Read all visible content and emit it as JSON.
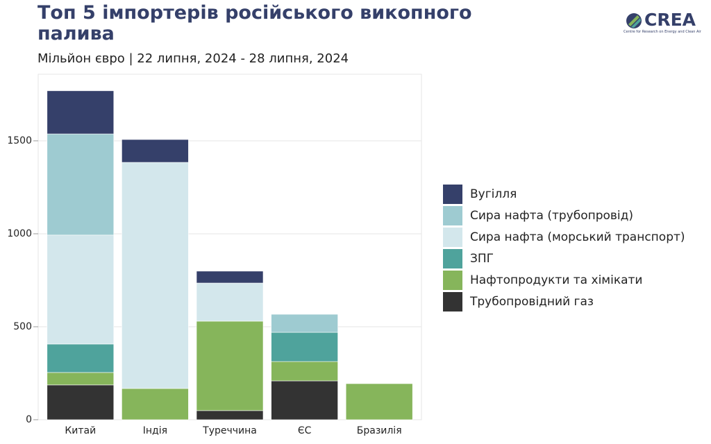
{
  "chart_data": {
    "type": "stacked_bar",
    "title": "Топ 5 імпортерів російського викопного палива",
    "subtitle": "Мільйон євро | 22 липня, 2024 - 28 липня, 2024",
    "logo": {
      "name": "CREA",
      "subtitle": "Centre for Research on Energy and Clean Air"
    },
    "categories": [
      "Китай",
      "Індія",
      "Туреччина",
      "ЄС",
      "Бразилія"
    ],
    "series": [
      {
        "name": "Трубопровідний газ",
        "color": "#333333",
        "values": [
          187,
          0,
          49,
          209,
          0
        ]
      },
      {
        "name": "Нафтопродукти та хімікати",
        "color": "#86b55b",
        "values": [
          67,
          168,
          481,
          104,
          194
        ]
      },
      {
        "name": "ЗПГ",
        "color": "#4fa39c",
        "values": [
          153,
          0,
          0,
          157,
          0
        ]
      },
      {
        "name": "Сира нафта (морський транспорт)",
        "color": "#d3e7ec",
        "values": [
          586,
          1216,
          205,
          0,
          0
        ]
      },
      {
        "name": "Сира нафта (трубопровід)",
        "color": "#9ecbd1",
        "values": [
          544,
          0,
          0,
          97,
          0
        ]
      },
      {
        "name": "Вугілля",
        "color": "#35406a",
        "values": [
          232,
          123,
          64,
          0,
          0
        ]
      }
    ],
    "ylim": [
      0,
      1858
    ],
    "yticks": [
      0,
      500,
      1000,
      1500
    ],
    "grid": true
  }
}
